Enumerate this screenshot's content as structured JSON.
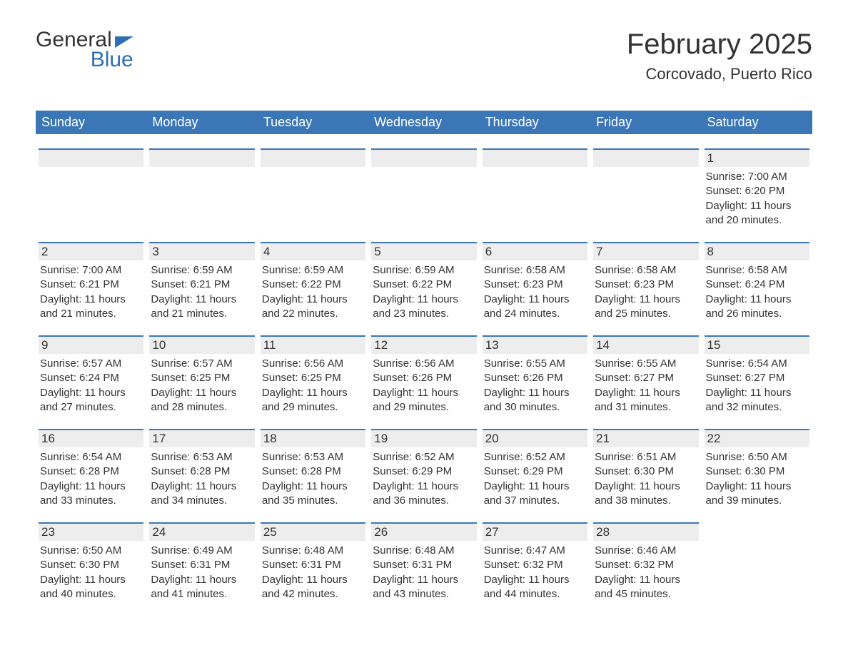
{
  "logo": {
    "word1": "General",
    "word2": "Blue"
  },
  "title": "February 2025",
  "location": "Corcovado, Puerto Rico",
  "colors": {
    "header_bg": "#3b77b6",
    "header_text": "#ffffff",
    "daynum_bg": "#ededed",
    "accent_border": "#3b77b6",
    "text": "#333333",
    "brand_blue": "#2c6fb5",
    "page_bg": "#ffffff"
  },
  "day_headers": [
    "Sunday",
    "Monday",
    "Tuesday",
    "Wednesday",
    "Thursday",
    "Friday",
    "Saturday"
  ],
  "weeks": [
    [
      {
        "day": "",
        "lines": []
      },
      {
        "day": "",
        "lines": []
      },
      {
        "day": "",
        "lines": []
      },
      {
        "day": "",
        "lines": []
      },
      {
        "day": "",
        "lines": []
      },
      {
        "day": "",
        "lines": []
      },
      {
        "day": "1",
        "lines": [
          "Sunrise: 7:00 AM",
          "Sunset: 6:20 PM",
          "Daylight: 11 hours",
          "and 20 minutes."
        ]
      }
    ],
    [
      {
        "day": "2",
        "lines": [
          "Sunrise: 7:00 AM",
          "Sunset: 6:21 PM",
          "Daylight: 11 hours",
          "and 21 minutes."
        ]
      },
      {
        "day": "3",
        "lines": [
          "Sunrise: 6:59 AM",
          "Sunset: 6:21 PM",
          "Daylight: 11 hours",
          "and 21 minutes."
        ]
      },
      {
        "day": "4",
        "lines": [
          "Sunrise: 6:59 AM",
          "Sunset: 6:22 PM",
          "Daylight: 11 hours",
          "and 22 minutes."
        ]
      },
      {
        "day": "5",
        "lines": [
          "Sunrise: 6:59 AM",
          "Sunset: 6:22 PM",
          "Daylight: 11 hours",
          "and 23 minutes."
        ]
      },
      {
        "day": "6",
        "lines": [
          "Sunrise: 6:58 AM",
          "Sunset: 6:23 PM",
          "Daylight: 11 hours",
          "and 24 minutes."
        ]
      },
      {
        "day": "7",
        "lines": [
          "Sunrise: 6:58 AM",
          "Sunset: 6:23 PM",
          "Daylight: 11 hours",
          "and 25 minutes."
        ]
      },
      {
        "day": "8",
        "lines": [
          "Sunrise: 6:58 AM",
          "Sunset: 6:24 PM",
          "Daylight: 11 hours",
          "and 26 minutes."
        ]
      }
    ],
    [
      {
        "day": "9",
        "lines": [
          "Sunrise: 6:57 AM",
          "Sunset: 6:24 PM",
          "Daylight: 11 hours",
          "and 27 minutes."
        ]
      },
      {
        "day": "10",
        "lines": [
          "Sunrise: 6:57 AM",
          "Sunset: 6:25 PM",
          "Daylight: 11 hours",
          "and 28 minutes."
        ]
      },
      {
        "day": "11",
        "lines": [
          "Sunrise: 6:56 AM",
          "Sunset: 6:25 PM",
          "Daylight: 11 hours",
          "and 29 minutes."
        ]
      },
      {
        "day": "12",
        "lines": [
          "Sunrise: 6:56 AM",
          "Sunset: 6:26 PM",
          "Daylight: 11 hours",
          "and 29 minutes."
        ]
      },
      {
        "day": "13",
        "lines": [
          "Sunrise: 6:55 AM",
          "Sunset: 6:26 PM",
          "Daylight: 11 hours",
          "and 30 minutes."
        ]
      },
      {
        "day": "14",
        "lines": [
          "Sunrise: 6:55 AM",
          "Sunset: 6:27 PM",
          "Daylight: 11 hours",
          "and 31 minutes."
        ]
      },
      {
        "day": "15",
        "lines": [
          "Sunrise: 6:54 AM",
          "Sunset: 6:27 PM",
          "Daylight: 11 hours",
          "and 32 minutes."
        ]
      }
    ],
    [
      {
        "day": "16",
        "lines": [
          "Sunrise: 6:54 AM",
          "Sunset: 6:28 PM",
          "Daylight: 11 hours",
          "and 33 minutes."
        ]
      },
      {
        "day": "17",
        "lines": [
          "Sunrise: 6:53 AM",
          "Sunset: 6:28 PM",
          "Daylight: 11 hours",
          "and 34 minutes."
        ]
      },
      {
        "day": "18",
        "lines": [
          "Sunrise: 6:53 AM",
          "Sunset: 6:28 PM",
          "Daylight: 11 hours",
          "and 35 minutes."
        ]
      },
      {
        "day": "19",
        "lines": [
          "Sunrise: 6:52 AM",
          "Sunset: 6:29 PM",
          "Daylight: 11 hours",
          "and 36 minutes."
        ]
      },
      {
        "day": "20",
        "lines": [
          "Sunrise: 6:52 AM",
          "Sunset: 6:29 PM",
          "Daylight: 11 hours",
          "and 37 minutes."
        ]
      },
      {
        "day": "21",
        "lines": [
          "Sunrise: 6:51 AM",
          "Sunset: 6:30 PM",
          "Daylight: 11 hours",
          "and 38 minutes."
        ]
      },
      {
        "day": "22",
        "lines": [
          "Sunrise: 6:50 AM",
          "Sunset: 6:30 PM",
          "Daylight: 11 hours",
          "and 39 minutes."
        ]
      }
    ],
    [
      {
        "day": "23",
        "lines": [
          "Sunrise: 6:50 AM",
          "Sunset: 6:30 PM",
          "Daylight: 11 hours",
          "and 40 minutes."
        ]
      },
      {
        "day": "24",
        "lines": [
          "Sunrise: 6:49 AM",
          "Sunset: 6:31 PM",
          "Daylight: 11 hours",
          "and 41 minutes."
        ]
      },
      {
        "day": "25",
        "lines": [
          "Sunrise: 6:48 AM",
          "Sunset: 6:31 PM",
          "Daylight: 11 hours",
          "and 42 minutes."
        ]
      },
      {
        "day": "26",
        "lines": [
          "Sunrise: 6:48 AM",
          "Sunset: 6:31 PM",
          "Daylight: 11 hours",
          "and 43 minutes."
        ]
      },
      {
        "day": "27",
        "lines": [
          "Sunrise: 6:47 AM",
          "Sunset: 6:32 PM",
          "Daylight: 11 hours",
          "and 44 minutes."
        ]
      },
      {
        "day": "28",
        "lines": [
          "Sunrise: 6:46 AM",
          "Sunset: 6:32 PM",
          "Daylight: 11 hours",
          "and 45 minutes."
        ]
      },
      {
        "day": "",
        "lines": []
      }
    ]
  ]
}
